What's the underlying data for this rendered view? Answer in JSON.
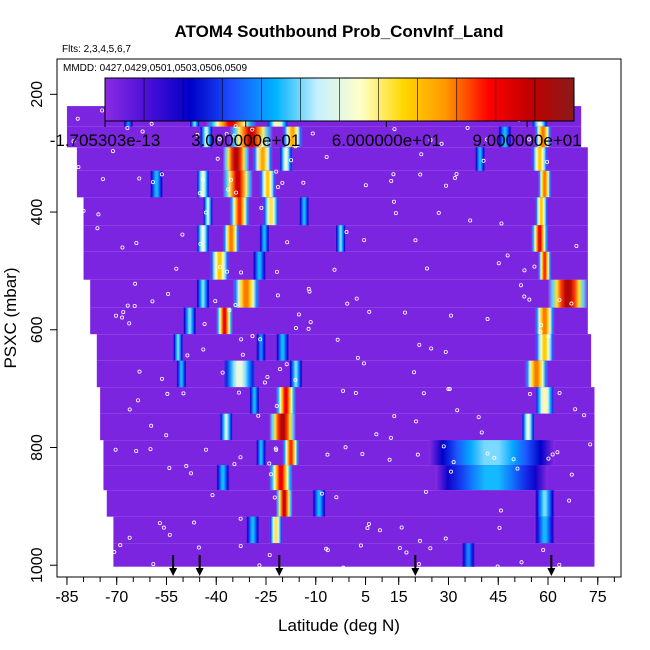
{
  "chart_data": {
    "type": "heatmap",
    "title": "ATOM4 Southbound Prob_ConvInf_Land",
    "flights_note": "Flts: 2,3,4,5,6,7",
    "dates_note": "MMDD: 0427,0429,0501,0503,0506,0509",
    "xlabel": "Latitude (deg N)",
    "ylabel": "PSXC (mbar)",
    "xlim": [
      -88,
      82
    ],
    "ylim": [
      1020,
      140
    ],
    "x_ticks": [
      -85,
      -70,
      -55,
      -40,
      -25,
      -10,
      5,
      15,
      30,
      45,
      60,
      75
    ],
    "x_minor_step": 5,
    "y_ticks": [
      200,
      400,
      600,
      800,
      1000
    ],
    "colorbar": {
      "min": 0,
      "max": 100,
      "tick_values": [
        0,
        30,
        60,
        90
      ],
      "tick_labels": [
        "-1.705303e-13",
        "3.000000e+01",
        "6.000000e+01",
        "9.000000e+01"
      ],
      "colors": [
        "#8a2be2",
        "#4b0fd8",
        "#0000c8",
        "#1e50ff",
        "#00b4ff",
        "#c8f0ff",
        "#ffffc8",
        "#ffd700",
        "#ff9600",
        "#ff0000",
        "#c00000",
        "#8b1a1a"
      ]
    },
    "marker_latitudes": [
      -53,
      -45,
      -21,
      20,
      61
    ],
    "pressure_levels": [
      {
        "p": 200,
        "lat_min": -43,
        "lat_max": 68,
        "hot": [
          [
            -16,
            38,
            100
          ],
          [
            40,
            50,
            45
          ],
          [
            -55,
            -51,
            35
          ]
        ]
      },
      {
        "p": 240,
        "lat_min": -85,
        "lat_max": 70,
        "hot": [
          [
            -43,
            -28,
            90
          ],
          [
            -25,
            -18,
            60
          ],
          [
            -48,
            -45,
            45
          ],
          [
            55,
            60,
            55
          ],
          [
            -68,
            -65,
            35
          ]
        ]
      },
      {
        "p": 270,
        "lat_min": -85,
        "lat_max": 70,
        "hot": [
          [
            -36,
            -23,
            95
          ],
          [
            -20,
            -14,
            75
          ],
          [
            -45,
            -41,
            50
          ],
          [
            56,
            61,
            80
          ],
          [
            45,
            49,
            40
          ]
        ]
      },
      {
        "p": 310,
        "lat_min": -82,
        "lat_max": 72,
        "hot": [
          [
            -38,
            -30,
            100
          ],
          [
            -29,
            -23,
            75
          ],
          [
            -21,
            -17,
            55
          ],
          [
            55,
            60,
            70
          ],
          [
            38,
            41,
            40
          ]
        ]
      },
      {
        "p": 350,
        "lat_min": -82,
        "lat_max": 72,
        "hot": [
          [
            -38,
            -29,
            95
          ],
          [
            -27,
            -22,
            70
          ],
          [
            -46,
            -42,
            55
          ],
          [
            57,
            61,
            80
          ],
          [
            -60,
            -56,
            40
          ]
        ]
      },
      {
        "p": 400,
        "lat_min": -80,
        "lat_max": 72,
        "hot": [
          [
            -36,
            -30,
            85
          ],
          [
            -26,
            -21,
            65
          ],
          [
            -44,
            -41,
            50
          ],
          [
            56,
            60,
            70
          ],
          [
            -15,
            -12,
            40
          ]
        ]
      },
      {
        "p": 445,
        "lat_min": -80,
        "lat_max": 72,
        "hot": [
          [
            -38,
            -33,
            80
          ],
          [
            -46,
            -42,
            55
          ],
          [
            -4,
            -1,
            45
          ],
          [
            55,
            60,
            90
          ],
          [
            -27,
            -24,
            40
          ]
        ]
      },
      {
        "p": 490,
        "lat_min": -80,
        "lat_max": 72,
        "hot": [
          [
            -42,
            -36,
            70
          ],
          [
            57,
            61,
            85
          ],
          [
            -29,
            -25,
            40
          ]
        ]
      },
      {
        "p": 540,
        "lat_min": -78,
        "lat_max": 72,
        "hot": [
          [
            -35,
            -27,
            80
          ],
          [
            60,
            72,
            100
          ],
          [
            -46,
            -42,
            45
          ]
        ]
      },
      {
        "p": 585,
        "lat_min": -78,
        "lat_max": 72,
        "hot": [
          [
            -40,
            -35,
            90
          ],
          [
            56,
            62,
            80
          ],
          [
            -50,
            -46,
            45
          ]
        ]
      },
      {
        "p": 630,
        "lat_min": -76,
        "lat_max": 73,
        "hot": [
          [
            56,
            62,
            70
          ],
          [
            -53,
            -50,
            45
          ],
          [
            -22,
            -18,
            40
          ],
          [
            -28,
            -25,
            35
          ]
        ]
      },
      {
        "p": 675,
        "lat_min": -76,
        "lat_max": 73,
        "hot": [
          [
            -38,
            -28,
            55
          ],
          [
            53,
            60,
            80
          ],
          [
            -52,
            -49,
            40
          ],
          [
            -18,
            -14,
            45
          ]
        ]
      },
      {
        "p": 720,
        "lat_min": -75,
        "lat_max": 74,
        "hot": [
          [
            -22,
            -16,
            90
          ],
          [
            56,
            62,
            60
          ],
          [
            -30,
            -27,
            40
          ]
        ]
      },
      {
        "p": 765,
        "lat_min": -75,
        "lat_max": 74,
        "hot": [
          [
            -24,
            -16,
            100
          ],
          [
            -39,
            -35,
            50
          ],
          [
            52,
            56,
            55
          ]
        ]
      },
      {
        "p": 810,
        "lat_min": -74,
        "lat_max": 74,
        "hot": [
          [
            -20,
            -15,
            85
          ],
          [
            24,
            62,
            45
          ],
          [
            -28,
            -25,
            40
          ]
        ]
      },
      {
        "p": 850,
        "lat_min": -74,
        "lat_max": 74,
        "hot": [
          [
            -24,
            -17,
            90
          ],
          [
            26,
            60,
            40
          ],
          [
            -40,
            -36,
            40
          ]
        ]
      },
      {
        "p": 895,
        "lat_min": -73,
        "lat_max": 74,
        "hot": [
          [
            -22,
            -17,
            95
          ],
          [
            -11,
            -7,
            40
          ],
          [
            56,
            62,
            45
          ]
        ]
      },
      {
        "p": 940,
        "lat_min": -71,
        "lat_max": 74,
        "hot": [
          [
            -24,
            -20,
            65
          ],
          [
            -31,
            -27,
            40
          ],
          [
            56,
            62,
            40
          ]
        ]
      },
      {
        "p": 985,
        "lat_min": -71,
        "lat_max": 74,
        "hot": [
          [
            34,
            38,
            35
          ]
        ]
      }
    ]
  }
}
